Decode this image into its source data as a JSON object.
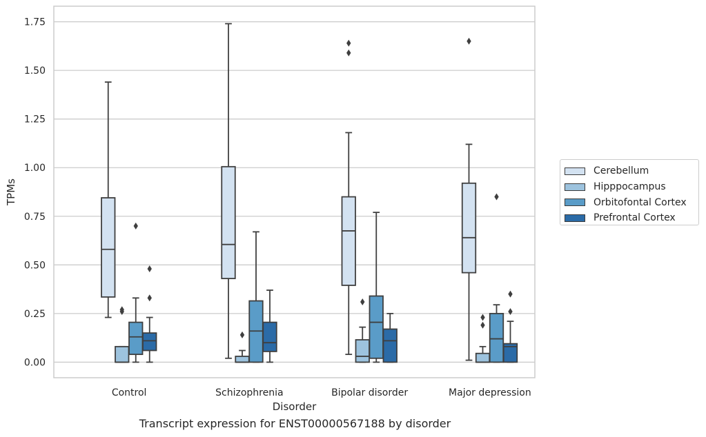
{
  "caption": "Transcript expression for ENST00000567188 by disorder",
  "chart_data": {
    "type": "box",
    "title": "",
    "xlabel": "Disorder",
    "ylabel": "TPMs",
    "ylim": [
      -0.08,
      1.83
    ],
    "yticks": [
      "0.00",
      "0.25",
      "0.50",
      "0.75",
      "1.00",
      "1.25",
      "1.50",
      "1.75"
    ],
    "ytick_values": [
      0,
      0.25,
      0.5,
      0.75,
      1.0,
      1.25,
      1.5,
      1.75
    ],
    "grid": "horizontal",
    "legend_position": "right",
    "categories": [
      "Control",
      "Schizophrenia",
      "Bipolar disorder",
      "Major depression"
    ],
    "series": [
      {
        "name": "Cerebellum",
        "color": "#d3e2f1",
        "boxes": [
          {
            "whislo": 0.23,
            "q1": 0.335,
            "med": 0.58,
            "q3": 0.845,
            "whishi": 1.44,
            "fliers": []
          },
          {
            "whislo": 0.02,
            "q1": 0.43,
            "med": 0.605,
            "q3": 1.005,
            "whishi": 1.74,
            "fliers": []
          },
          {
            "whislo": 0.04,
            "q1": 0.395,
            "med": 0.675,
            "q3": 0.85,
            "whishi": 1.18,
            "fliers": [
              1.59,
              1.64
            ]
          },
          {
            "whislo": 0.01,
            "q1": 0.46,
            "med": 0.64,
            "q3": 0.92,
            "whishi": 1.12,
            "fliers": [
              1.65
            ]
          }
        ]
      },
      {
        "name": "Hipppocampus",
        "color": "#9dc3de",
        "boxes": [
          {
            "whislo": 0.0,
            "q1": 0.0,
            "med": 0.0,
            "q3": 0.08,
            "whishi": 0.08,
            "fliers": [
              0.26,
              0.27
            ]
          },
          {
            "whislo": 0.0,
            "q1": 0.0,
            "med": 0.0,
            "q3": 0.03,
            "whishi": 0.06,
            "fliers": [
              0.14
            ]
          },
          {
            "whislo": 0.0,
            "q1": 0.0,
            "med": 0.03,
            "q3": 0.115,
            "whishi": 0.18,
            "fliers": [
              0.31
            ]
          },
          {
            "whislo": 0.0,
            "q1": 0.0,
            "med": 0.0,
            "q3": 0.045,
            "whishi": 0.08,
            "fliers": [
              0.19,
              0.23
            ]
          }
        ]
      },
      {
        "name": "Orbitofontal Cortex",
        "color": "#5a9cc8",
        "boxes": [
          {
            "whislo": 0.0,
            "q1": 0.04,
            "med": 0.13,
            "q3": 0.205,
            "whishi": 0.33,
            "fliers": [
              0.7
            ]
          },
          {
            "whislo": 0.0,
            "q1": 0.0,
            "med": 0.16,
            "q3": 0.315,
            "whishi": 0.67,
            "fliers": []
          },
          {
            "whislo": 0.0,
            "q1": 0.02,
            "med": 0.205,
            "q3": 0.34,
            "whishi": 0.77,
            "fliers": []
          },
          {
            "whislo": 0.0,
            "q1": 0.0,
            "med": 0.12,
            "q3": 0.25,
            "whishi": 0.295,
            "fliers": [
              0.85
            ]
          }
        ]
      },
      {
        "name": "Prefrontal Cortex",
        "color": "#2b6ba7",
        "boxes": [
          {
            "whislo": 0.0,
            "q1": 0.06,
            "med": 0.11,
            "q3": 0.15,
            "whishi": 0.23,
            "fliers": [
              0.33,
              0.48
            ]
          },
          {
            "whislo": 0.0,
            "q1": 0.055,
            "med": 0.1,
            "q3": 0.205,
            "whishi": 0.37,
            "fliers": []
          },
          {
            "whislo": 0.0,
            "q1": 0.0,
            "med": 0.11,
            "q3": 0.17,
            "whishi": 0.25,
            "fliers": []
          },
          {
            "whislo": 0.0,
            "q1": 0.0,
            "med": 0.08,
            "q3": 0.095,
            "whishi": 0.21,
            "fliers": [
              0.26,
              0.35
            ]
          }
        ]
      }
    ]
  }
}
